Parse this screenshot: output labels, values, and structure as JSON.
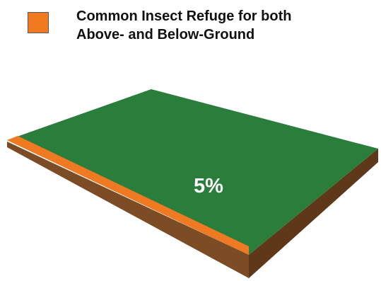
{
  "legend": {
    "line1": "Common Insect Refuge for both",
    "line2": "Above- and Below-Ground"
  },
  "field": {
    "percent_label": "5%"
  },
  "colors": {
    "refuge_orange": "#f07a22",
    "field_green": "#2b7d3b",
    "soil_brown": "#7c4c25",
    "soil_dark": "#5e3818",
    "label_white": "#ffffff"
  },
  "icons": {
    "legend_swatch": "orange-square-swatch"
  }
}
